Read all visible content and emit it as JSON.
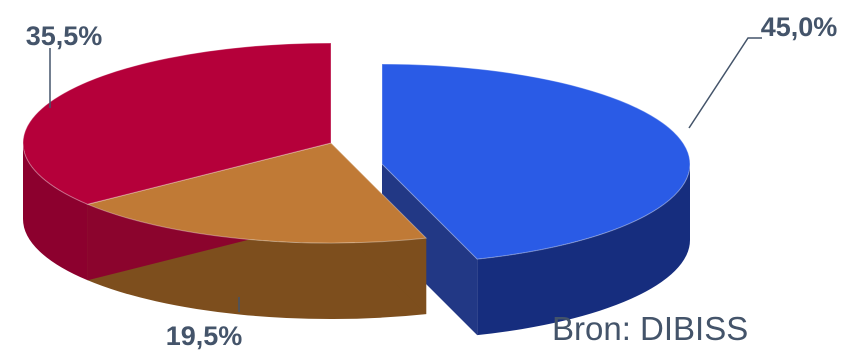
{
  "chart_data": {
    "type": "pie",
    "categories": [
      "",
      "",
      ""
    ],
    "values": [
      45.0,
      19.5,
      35.5
    ],
    "labels": [
      "45,0%",
      "19,5%",
      "35,5%"
    ],
    "colors": [
      "#2a5be6",
      "#c07a36",
      "#b5003a"
    ],
    "side_colors": [
      "#162d7e",
      "#7d4e1d",
      "#8c002e"
    ],
    "style": "3d-exploded",
    "legend": "none"
  },
  "source": "Bron: DIBISS"
}
